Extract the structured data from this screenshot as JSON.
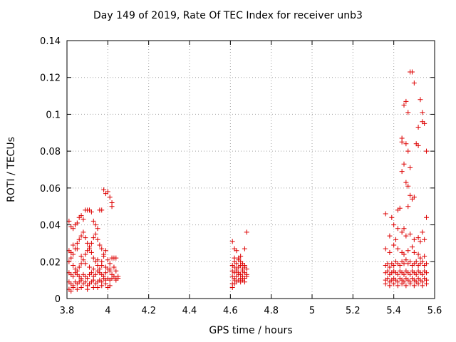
{
  "chart_data": {
    "type": "scatter",
    "title": "Day 149 of 2019, Rate Of TEC Index for receiver unb3",
    "xlabel": "GPS time / hours",
    "ylabel": "ROTI / TECUs",
    "xlim": [
      3.8,
      5.6
    ],
    "ylim": [
      0,
      0.14
    ],
    "grid": true,
    "marker": "+",
    "marker_color": "#dd0000",
    "x_ticks": [
      "3.8",
      "4",
      "4.2",
      "4.4",
      "4.6",
      "4.8",
      "5",
      "5.2",
      "5.4",
      "5.6"
    ],
    "y_ticks": [
      "0",
      "0.02",
      "0.04",
      "0.06",
      "0.08",
      "0.1",
      "0.12",
      "0.14"
    ],
    "series": [
      {
        "name": "ROTI",
        "points": [
          [
            3.81,
            0.042
          ],
          [
            3.82,
            0.039
          ],
          [
            3.83,
            0.038
          ],
          [
            3.84,
            0.04
          ],
          [
            3.85,
            0.041
          ],
          [
            3.86,
            0.044
          ],
          [
            3.87,
            0.045
          ],
          [
            3.88,
            0.043
          ],
          [
            3.89,
            0.048
          ],
          [
            3.9,
            0.048
          ],
          [
            3.91,
            0.048
          ],
          [
            3.92,
            0.047
          ],
          [
            3.93,
            0.042
          ],
          [
            3.94,
            0.04
          ],
          [
            3.95,
            0.038
          ],
          [
            3.96,
            0.048
          ],
          [
            3.97,
            0.048
          ],
          [
            3.98,
            0.059
          ],
          [
            3.99,
            0.057
          ],
          [
            4.0,
            0.058
          ],
          [
            4.01,
            0.055
          ],
          [
            4.02,
            0.052
          ],
          [
            4.02,
            0.05
          ],
          [
            3.81,
            0.026
          ],
          [
            3.82,
            0.025
          ],
          [
            3.83,
            0.024
          ],
          [
            3.84,
            0.027
          ],
          [
            3.85,
            0.03
          ],
          [
            3.86,
            0.032
          ],
          [
            3.87,
            0.034
          ],
          [
            3.88,
            0.036
          ],
          [
            3.89,
            0.033
          ],
          [
            3.9,
            0.03
          ],
          [
            3.91,
            0.027
          ],
          [
            3.92,
            0.03
          ],
          [
            3.93,
            0.033
          ],
          [
            3.94,
            0.035
          ],
          [
            3.95,
            0.032
          ],
          [
            3.96,
            0.029
          ],
          [
            3.97,
            0.027
          ],
          [
            3.98,
            0.024
          ],
          [
            3.81,
            0.02
          ],
          [
            3.82,
            0.022
          ],
          [
            3.83,
            0.018
          ],
          [
            3.84,
            0.016
          ],
          [
            3.85,
            0.015
          ],
          [
            3.86,
            0.017
          ],
          [
            3.87,
            0.019
          ],
          [
            3.88,
            0.021
          ],
          [
            3.89,
            0.024
          ],
          [
            3.9,
            0.026
          ],
          [
            3.91,
            0.028
          ],
          [
            3.92,
            0.025
          ],
          [
            3.93,
            0.022
          ],
          [
            3.94,
            0.02
          ],
          [
            3.95,
            0.018
          ],
          [
            3.96,
            0.016
          ],
          [
            3.97,
            0.02
          ],
          [
            3.98,
            0.023
          ],
          [
            3.99,
            0.026
          ],
          [
            4.0,
            0.021
          ],
          [
            4.01,
            0.019
          ],
          [
            4.02,
            0.022
          ],
          [
            4.03,
            0.022
          ],
          [
            4.04,
            0.022
          ],
          [
            3.81,
            0.014
          ],
          [
            3.82,
            0.013
          ],
          [
            3.83,
            0.012
          ],
          [
            3.84,
            0.014
          ],
          [
            3.85,
            0.013
          ],
          [
            3.86,
            0.012
          ],
          [
            3.87,
            0.011
          ],
          [
            3.88,
            0.013
          ],
          [
            3.89,
            0.012
          ],
          [
            3.9,
            0.011
          ],
          [
            3.91,
            0.013
          ],
          [
            3.92,
            0.014
          ],
          [
            3.93,
            0.012
          ],
          [
            3.94,
            0.013
          ],
          [
            3.95,
            0.015
          ],
          [
            3.96,
            0.014
          ],
          [
            3.97,
            0.013
          ],
          [
            3.98,
            0.012
          ],
          [
            3.99,
            0.014
          ],
          [
            4.0,
            0.016
          ],
          [
            4.01,
            0.015
          ],
          [
            4.02,
            0.013
          ],
          [
            4.03,
            0.012
          ],
          [
            4.04,
            0.011
          ],
          [
            4.05,
            0.012
          ],
          [
            3.81,
            0.009
          ],
          [
            3.82,
            0.008
          ],
          [
            3.83,
            0.007
          ],
          [
            3.84,
            0.009
          ],
          [
            3.85,
            0.008
          ],
          [
            3.86,
            0.009
          ],
          [
            3.87,
            0.01
          ],
          [
            3.88,
            0.008
          ],
          [
            3.89,
            0.009
          ],
          [
            3.9,
            0.007
          ],
          [
            3.91,
            0.008
          ],
          [
            3.92,
            0.009
          ],
          [
            3.93,
            0.01
          ],
          [
            3.94,
            0.008
          ],
          [
            3.95,
            0.009
          ],
          [
            3.96,
            0.01
          ],
          [
            3.97,
            0.009
          ],
          [
            3.98,
            0.011
          ],
          [
            3.99,
            0.01
          ],
          [
            4.0,
            0.011
          ],
          [
            4.01,
            0.01
          ],
          [
            4.02,
            0.011
          ],
          [
            4.03,
            0.012
          ],
          [
            4.04,
            0.01
          ],
          [
            4.05,
            0.011
          ],
          [
            3.81,
            0.005
          ],
          [
            3.82,
            0.004
          ],
          [
            3.83,
            0.006
          ],
          [
            3.85,
            0.005
          ],
          [
            3.87,
            0.006
          ],
          [
            3.9,
            0.005
          ],
          [
            3.93,
            0.006
          ],
          [
            3.95,
            0.006
          ],
          [
            3.97,
            0.007
          ],
          [
            3.99,
            0.008
          ],
          [
            4.0,
            0.006
          ],
          [
            4.01,
            0.007
          ],
          [
            3.83,
            0.029
          ],
          [
            3.85,
            0.027
          ],
          [
            3.87,
            0.023
          ],
          [
            3.89,
            0.019
          ],
          [
            3.91,
            0.017
          ],
          [
            3.93,
            0.016
          ],
          [
            3.95,
            0.021
          ],
          [
            3.97,
            0.018
          ],
          [
            3.99,
            0.017
          ],
          [
            4.01,
            0.016
          ],
          [
            4.03,
            0.017
          ],
          [
            4.04,
            0.015
          ],
          [
            4.61,
            0.031
          ],
          [
            4.62,
            0.027
          ],
          [
            4.63,
            0.026
          ],
          [
            4.68,
            0.036
          ],
          [
            4.67,
            0.027
          ],
          [
            4.62,
            0.022
          ],
          [
            4.64,
            0.022
          ],
          [
            4.65,
            0.023
          ],
          [
            4.62,
            0.02
          ],
          [
            4.63,
            0.019
          ],
          [
            4.64,
            0.021
          ],
          [
            4.65,
            0.02
          ],
          [
            4.66,
            0.019
          ],
          [
            4.67,
            0.018
          ],
          [
            4.61,
            0.018
          ],
          [
            4.62,
            0.017
          ],
          [
            4.63,
            0.016
          ],
          [
            4.64,
            0.017
          ],
          [
            4.65,
            0.018
          ],
          [
            4.66,
            0.016
          ],
          [
            4.67,
            0.017
          ],
          [
            4.68,
            0.016
          ],
          [
            4.61,
            0.015
          ],
          [
            4.62,
            0.014
          ],
          [
            4.63,
            0.015
          ],
          [
            4.64,
            0.014
          ],
          [
            4.65,
            0.013
          ],
          [
            4.66,
            0.015
          ],
          [
            4.67,
            0.014
          ],
          [
            4.68,
            0.013
          ],
          [
            4.61,
            0.012
          ],
          [
            4.62,
            0.011
          ],
          [
            4.63,
            0.012
          ],
          [
            4.64,
            0.013
          ],
          [
            4.65,
            0.011
          ],
          [
            4.66,
            0.012
          ],
          [
            4.67,
            0.011
          ],
          [
            4.68,
            0.012
          ],
          [
            4.62,
            0.01
          ],
          [
            4.63,
            0.009
          ],
          [
            4.64,
            0.01
          ],
          [
            4.65,
            0.009
          ],
          [
            4.66,
            0.01
          ],
          [
            4.67,
            0.009
          ],
          [
            4.61,
            0.008
          ],
          [
            4.62,
            0.008
          ],
          [
            4.61,
            0.006
          ],
          [
            5.48,
            0.123
          ],
          [
            5.49,
            0.123
          ],
          [
            5.5,
            0.117
          ],
          [
            5.53,
            0.108
          ],
          [
            5.54,
            0.101
          ],
          [
            5.54,
            0.096
          ],
          [
            5.55,
            0.095
          ],
          [
            5.52,
            0.093
          ],
          [
            5.46,
            0.107
          ],
          [
            5.45,
            0.105
          ],
          [
            5.47,
            0.101
          ],
          [
            5.51,
            0.084
          ],
          [
            5.52,
            0.083
          ],
          [
            5.44,
            0.087
          ],
          [
            5.44,
            0.085
          ],
          [
            5.46,
            0.084
          ],
          [
            5.47,
            0.08
          ],
          [
            5.56,
            0.08
          ],
          [
            5.45,
            0.073
          ],
          [
            5.48,
            0.071
          ],
          [
            5.44,
            0.069
          ],
          [
            5.46,
            0.063
          ],
          [
            5.47,
            0.061
          ],
          [
            5.48,
            0.056
          ],
          [
            5.49,
            0.054
          ],
          [
            5.5,
            0.055
          ],
          [
            5.47,
            0.05
          ],
          [
            5.36,
            0.046
          ],
          [
            5.39,
            0.044
          ],
          [
            5.42,
            0.048
          ],
          [
            5.43,
            0.049
          ],
          [
            5.4,
            0.04
          ],
          [
            5.42,
            0.038
          ],
          [
            5.44,
            0.036
          ],
          [
            5.45,
            0.038
          ],
          [
            5.46,
            0.034
          ],
          [
            5.48,
            0.035
          ],
          [
            5.5,
            0.032
          ],
          [
            5.52,
            0.033
          ],
          [
            5.53,
            0.031
          ],
          [
            5.55,
            0.032
          ],
          [
            5.56,
            0.044
          ],
          [
            5.54,
            0.036
          ],
          [
            5.36,
            0.027
          ],
          [
            5.38,
            0.025
          ],
          [
            5.4,
            0.029
          ],
          [
            5.42,
            0.027
          ],
          [
            5.44,
            0.025
          ],
          [
            5.45,
            0.024
          ],
          [
            5.47,
            0.026
          ],
          [
            5.49,
            0.028
          ],
          [
            5.5,
            0.025
          ],
          [
            5.52,
            0.024
          ],
          [
            5.53,
            0.022
          ],
          [
            5.55,
            0.023
          ],
          [
            5.41,
            0.032
          ],
          [
            5.38,
            0.034
          ],
          [
            5.36,
            0.018
          ],
          [
            5.37,
            0.019
          ],
          [
            5.38,
            0.017
          ],
          [
            5.39,
            0.019
          ],
          [
            5.4,
            0.018
          ],
          [
            5.41,
            0.02
          ],
          [
            5.42,
            0.019
          ],
          [
            5.43,
            0.018
          ],
          [
            5.44,
            0.02
          ],
          [
            5.45,
            0.019
          ],
          [
            5.46,
            0.021
          ],
          [
            5.47,
            0.019
          ],
          [
            5.48,
            0.02
          ],
          [
            5.49,
            0.018
          ],
          [
            5.5,
            0.019
          ],
          [
            5.51,
            0.02
          ],
          [
            5.52,
            0.018
          ],
          [
            5.53,
            0.019
          ],
          [
            5.54,
            0.02
          ],
          [
            5.55,
            0.018
          ],
          [
            5.56,
            0.019
          ],
          [
            5.36,
            0.014
          ],
          [
            5.37,
            0.015
          ],
          [
            5.38,
            0.013
          ],
          [
            5.39,
            0.014
          ],
          [
            5.4,
            0.015
          ],
          [
            5.41,
            0.014
          ],
          [
            5.42,
            0.013
          ],
          [
            5.43,
            0.015
          ],
          [
            5.44,
            0.014
          ],
          [
            5.45,
            0.013
          ],
          [
            5.46,
            0.015
          ],
          [
            5.47,
            0.014
          ],
          [
            5.48,
            0.013
          ],
          [
            5.49,
            0.015
          ],
          [
            5.5,
            0.014
          ],
          [
            5.51,
            0.013
          ],
          [
            5.52,
            0.015
          ],
          [
            5.53,
            0.014
          ],
          [
            5.54,
            0.013
          ],
          [
            5.55,
            0.015
          ],
          [
            5.56,
            0.014
          ],
          [
            5.36,
            0.01
          ],
          [
            5.37,
            0.011
          ],
          [
            5.38,
            0.009
          ],
          [
            5.39,
            0.01
          ],
          [
            5.4,
            0.011
          ],
          [
            5.41,
            0.01
          ],
          [
            5.42,
            0.009
          ],
          [
            5.43,
            0.011
          ],
          [
            5.44,
            0.01
          ],
          [
            5.45,
            0.009
          ],
          [
            5.46,
            0.011
          ],
          [
            5.47,
            0.01
          ],
          [
            5.48,
            0.009
          ],
          [
            5.49,
            0.011
          ],
          [
            5.5,
            0.01
          ],
          [
            5.51,
            0.009
          ],
          [
            5.52,
            0.011
          ],
          [
            5.53,
            0.01
          ],
          [
            5.54,
            0.009
          ],
          [
            5.55,
            0.011
          ],
          [
            5.56,
            0.01
          ],
          [
            5.36,
            0.008
          ],
          [
            5.38,
            0.007
          ],
          [
            5.4,
            0.008
          ],
          [
            5.42,
            0.007
          ],
          [
            5.44,
            0.008
          ],
          [
            5.46,
            0.007
          ],
          [
            5.48,
            0.008
          ],
          [
            5.5,
            0.007
          ],
          [
            5.52,
            0.008
          ],
          [
            5.54,
            0.007
          ],
          [
            5.56,
            0.008
          ]
        ]
      }
    ]
  }
}
